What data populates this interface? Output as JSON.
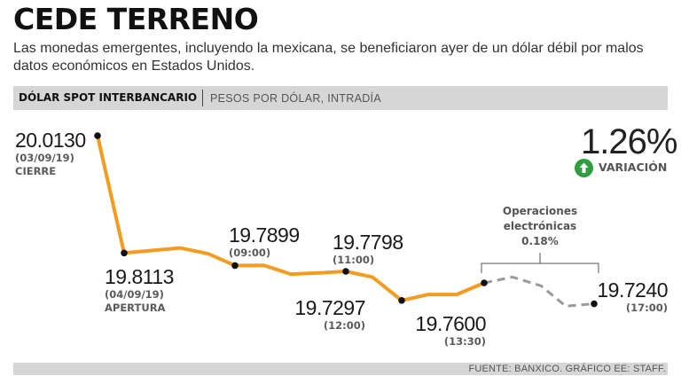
{
  "header": {
    "title": "CEDE TERRENO",
    "subtitle": "Las monedas emergentes, incluyendo la mexicana, se beneficiaron ayer de un dólar débil por malos datos económicos en Estados Unidos."
  },
  "chart_header": {
    "title": "DÓLAR SPOT INTERBANCARIO",
    "subtitle": "PESOS POR DÓLAR, INTRADÍA"
  },
  "variation": {
    "value": "1.26%",
    "label": "VARIACIÓN",
    "icon": "arrow-up-circle-icon",
    "color": "#2e9e3e"
  },
  "chart_data": {
    "type": "line",
    "title": "DÓLAR SPOT INTERBANCARIO",
    "ylabel": "PESOS POR DÓLAR, INTRADÍA",
    "colors": {
      "regular": "#f39c1f",
      "electronic": "#9a9a9a"
    },
    "points": [
      {
        "value": 20.013,
        "segment": "regular",
        "marker": true
      },
      {
        "value": 19.8113,
        "segment": "regular",
        "marker": true
      },
      {
        "value": 19.82,
        "segment": "regular",
        "marker": false
      },
      {
        "value": 19.81,
        "segment": "regular",
        "marker": false
      },
      {
        "value": 19.7899,
        "segment": "regular",
        "marker": true
      },
      {
        "value": 19.79,
        "segment": "regular",
        "marker": false
      },
      {
        "value": 19.775,
        "segment": "regular",
        "marker": false
      },
      {
        "value": 19.777,
        "segment": "regular",
        "marker": false
      },
      {
        "value": 19.7798,
        "segment": "regular",
        "marker": true
      },
      {
        "value": 19.77,
        "segment": "regular",
        "marker": false
      },
      {
        "value": 19.7297,
        "segment": "regular",
        "marker": true
      },
      {
        "value": 19.74,
        "segment": "regular",
        "marker": false
      },
      {
        "value": 19.74,
        "segment": "regular",
        "marker": false
      },
      {
        "value": 19.76,
        "segment": "regular",
        "marker": true
      },
      {
        "value": 19.77,
        "segment": "electronic",
        "marker": false
      },
      {
        "value": 19.755,
        "segment": "electronic",
        "marker": false
      },
      {
        "value": 19.72,
        "segment": "electronic",
        "marker": false
      },
      {
        "value": 19.724,
        "segment": "electronic",
        "marker": true
      }
    ],
    "annotations": [
      {
        "value": "20.0130",
        "time": "(03/09/19)",
        "tag": "CIERRE"
      },
      {
        "value": "19.8113",
        "time": "(04/09/19)",
        "tag": "APERTURA"
      },
      {
        "value": "19.7899",
        "time": "(09:00)",
        "tag": ""
      },
      {
        "value": "19.7798",
        "time": "(11:00)",
        "tag": ""
      },
      {
        "value": "19.7297",
        "time": "(12:00)",
        "tag": ""
      },
      {
        "value": "19.7600",
        "time": "(13:30)",
        "tag": ""
      },
      {
        "value": "19.7240",
        "time": "(17:00)",
        "tag": ""
      }
    ],
    "electronic_note": {
      "line1": "Operaciones",
      "line2": "electrónicas",
      "line3": "0.18%"
    }
  },
  "footer": {
    "source": "FUENTE: BANXICO. GRÁFICO EE: STAFF."
  }
}
